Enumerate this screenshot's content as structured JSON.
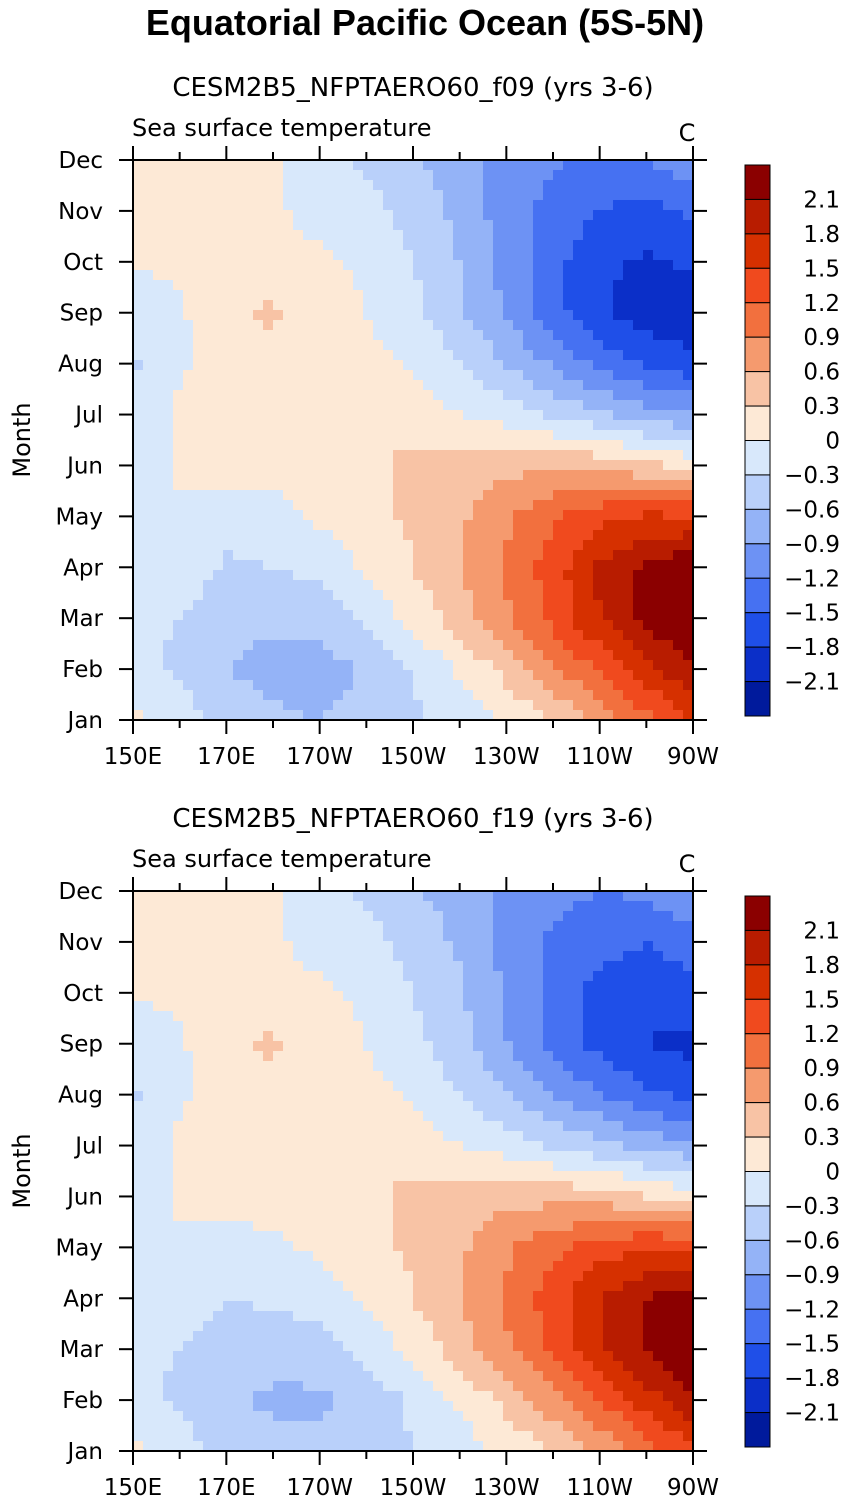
{
  "figure_title": "Equatorial Pacific Ocean (5S-5N)",
  "chart_data": [
    {
      "type": "heatmap",
      "title": "CESM2B5_NFPTAERO60_f09 (yrs 3-6)",
      "variable": "Sea surface temperature",
      "units": "C",
      "ylabel": "Month",
      "xlabel": "",
      "x_ticks": [
        "150E",
        "170E",
        "170W",
        "150W",
        "130W",
        "110W",
        "90W"
      ],
      "y_ticks": [
        "Jan",
        "Feb",
        "Mar",
        "Apr",
        "May",
        "Jun",
        "Jul",
        "Aug",
        "Sep",
        "Oct",
        "Nov",
        "Dec"
      ],
      "x": [
        150,
        160,
        170,
        180,
        190,
        200,
        210,
        220,
        230,
        240,
        250,
        260,
        270
      ],
      "y": [
        1,
        2,
        3,
        4,
        5,
        6,
        7,
        8,
        9,
        10,
        11,
        12
      ],
      "z": [
        [
          0.05,
          -0.15,
          -0.4,
          -0.55,
          -0.6,
          -0.5,
          -0.35,
          -0.2,
          0.05,
          0.3,
          0.7,
          1.1,
          1.5
        ],
        [
          -0.2,
          -0.35,
          -0.6,
          -0.7,
          -0.75,
          -0.55,
          -0.3,
          0.05,
          0.4,
          0.85,
          1.25,
          1.7,
          2.1
        ],
        [
          -0.25,
          -0.3,
          -0.5,
          -0.55,
          -0.5,
          -0.25,
          0.1,
          0.45,
          0.85,
          1.3,
          1.8,
          2.2,
          2.45
        ],
        [
          -0.2,
          -0.1,
          -0.35,
          -0.3,
          -0.2,
          0.05,
          0.3,
          0.6,
          0.95,
          1.35,
          1.85,
          2.15,
          2.35
        ],
        [
          -0.1,
          -0.05,
          -0.15,
          -0.1,
          0.05,
          0.2,
          0.35,
          0.55,
          0.85,
          1.15,
          1.4,
          1.55,
          1.5
        ],
        [
          -0.15,
          0.05,
          0.1,
          0.1,
          0.15,
          0.25,
          0.35,
          0.4,
          0.5,
          0.55,
          0.5,
          0.35,
          0.2
        ],
        [
          -0.2,
          0.05,
          0.1,
          0.15,
          0.25,
          0.3,
          0.2,
          0.0,
          -0.15,
          -0.35,
          -0.55,
          -0.75,
          -0.9
        ],
        [
          -0.35,
          -0.05,
          0.15,
          0.2,
          0.2,
          0.1,
          -0.05,
          -0.3,
          -0.6,
          -0.95,
          -1.3,
          -1.55,
          -1.7
        ],
        [
          -0.2,
          -0.05,
          0.25,
          0.35,
          0.1,
          0.0,
          -0.2,
          -0.55,
          -0.95,
          -1.4,
          -1.75,
          -1.95,
          -2.1
        ],
        [
          0.05,
          0.05,
          0.1,
          0.1,
          0.05,
          -0.05,
          -0.3,
          -0.6,
          -1.0,
          -1.4,
          -1.75,
          -1.85,
          -1.75
        ],
        [
          0.1,
          0.1,
          0.1,
          0.05,
          -0.1,
          -0.2,
          -0.4,
          -0.7,
          -1.05,
          -1.3,
          -1.5,
          -1.6,
          -1.45
        ],
        [
          0.15,
          0.1,
          0.1,
          0.05,
          -0.15,
          -0.35,
          -0.55,
          -0.8,
          -1.0,
          -1.15,
          -1.25,
          -1.2,
          -0.95
        ]
      ]
    },
    {
      "type": "heatmap",
      "title": "CESM2B5_NFPTAERO60_f19 (yrs 3-6)",
      "variable": "Sea surface temperature",
      "units": "C",
      "ylabel": "Month",
      "xlabel": "",
      "x_ticks": [
        "150E",
        "170E",
        "170W",
        "150W",
        "130W",
        "110W",
        "90W"
      ],
      "y_ticks": [
        "Jan",
        "Feb",
        "Mar",
        "Apr",
        "May",
        "Jun",
        "Jul",
        "Aug",
        "Sep",
        "Oct",
        "Nov",
        "Dec"
      ],
      "x": [
        150,
        160,
        170,
        180,
        190,
        200,
        210,
        220,
        230,
        240,
        250,
        260,
        270
      ],
      "y": [
        1,
        2,
        3,
        4,
        5,
        6,
        7,
        8,
        9,
        10,
        11,
        12
      ],
      "z": [
        [
          0.05,
          -0.15,
          -0.4,
          -0.5,
          -0.55,
          -0.45,
          -0.3,
          -0.15,
          0.05,
          0.3,
          0.65,
          1.05,
          1.45
        ],
        [
          -0.2,
          -0.35,
          -0.55,
          -0.65,
          -0.65,
          -0.5,
          -0.25,
          0.05,
          0.4,
          0.8,
          1.2,
          1.65,
          2.05
        ],
        [
          -0.25,
          -0.3,
          -0.45,
          -0.5,
          -0.45,
          -0.2,
          0.1,
          0.45,
          0.85,
          1.25,
          1.75,
          2.15,
          2.4
        ],
        [
          -0.2,
          -0.1,
          -0.3,
          -0.25,
          -0.15,
          0.05,
          0.3,
          0.6,
          0.95,
          1.35,
          1.8,
          2.1,
          2.3
        ],
        [
          -0.1,
          -0.05,
          -0.1,
          -0.05,
          0.05,
          0.2,
          0.35,
          0.55,
          0.85,
          1.1,
          1.35,
          1.5,
          1.45
        ],
        [
          -0.15,
          0.05,
          0.1,
          0.1,
          0.15,
          0.25,
          0.35,
          0.4,
          0.5,
          0.5,
          0.45,
          0.3,
          0.15
        ],
        [
          -0.2,
          0.05,
          0.1,
          0.15,
          0.2,
          0.3,
          0.2,
          0.0,
          -0.15,
          -0.35,
          -0.5,
          -0.7,
          -0.85
        ],
        [
          -0.35,
          -0.05,
          0.15,
          0.2,
          0.2,
          0.1,
          -0.05,
          -0.3,
          -0.55,
          -0.9,
          -1.2,
          -1.45,
          -1.6
        ],
        [
          -0.2,
          -0.05,
          0.25,
          0.35,
          0.1,
          0.0,
          -0.2,
          -0.5,
          -0.9,
          -1.3,
          -1.6,
          -1.8,
          -1.9
        ],
        [
          0.05,
          0.05,
          0.1,
          0.1,
          0.05,
          -0.05,
          -0.3,
          -0.55,
          -0.95,
          -1.3,
          -1.6,
          -1.7,
          -1.6
        ],
        [
          0.1,
          0.1,
          0.1,
          0.05,
          -0.1,
          -0.2,
          -0.4,
          -0.65,
          -1.0,
          -1.25,
          -1.4,
          -1.5,
          -1.35
        ],
        [
          0.15,
          0.1,
          0.1,
          0.05,
          -0.15,
          -0.35,
          -0.55,
          -0.75,
          -0.95,
          -1.1,
          -1.2,
          -1.15,
          -0.9
        ]
      ]
    }
  ],
  "colorbar": {
    "tick_labels": [
      "2.1",
      "1.8",
      "1.5",
      "1.2",
      "0.9",
      "0.6",
      "0.3",
      "0",
      "−0.3",
      "−0.6",
      "−0.9",
      "−1.2",
      "−1.5",
      "−1.8",
      "−2.1"
    ],
    "colors": [
      "#8b0000",
      "#b81c00",
      "#d63000",
      "#f04a1e",
      "#f2703e",
      "#f59a6e",
      "#f8c3a5",
      "#fde9d6",
      "#d8e8fb",
      "#b9d0fa",
      "#94b3f7",
      "#6d92f4",
      "#4671f2",
      "#1f4fe8",
      "#0b2fc8",
      "#001a9c"
    ]
  }
}
